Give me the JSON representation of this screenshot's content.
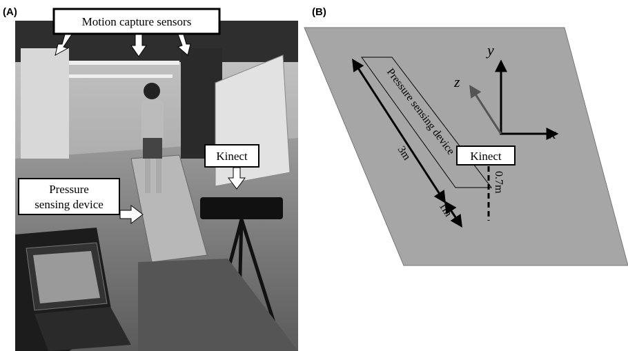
{
  "panel_a": {
    "label": "(A)",
    "callouts": {
      "motion_capture": "Motion capture sensors",
      "kinect": "Kinect",
      "pressure": [
        "Pressure",
        "sensing device"
      ]
    }
  },
  "panel_b": {
    "label": "(B)",
    "axes": {
      "y": "y",
      "z": "z",
      "x": "x"
    },
    "device_label": "Pressure sensing device",
    "length_label": "3m",
    "gap_label": "1m",
    "kinect": "Kinect",
    "offset_label": "0.7m"
  }
}
